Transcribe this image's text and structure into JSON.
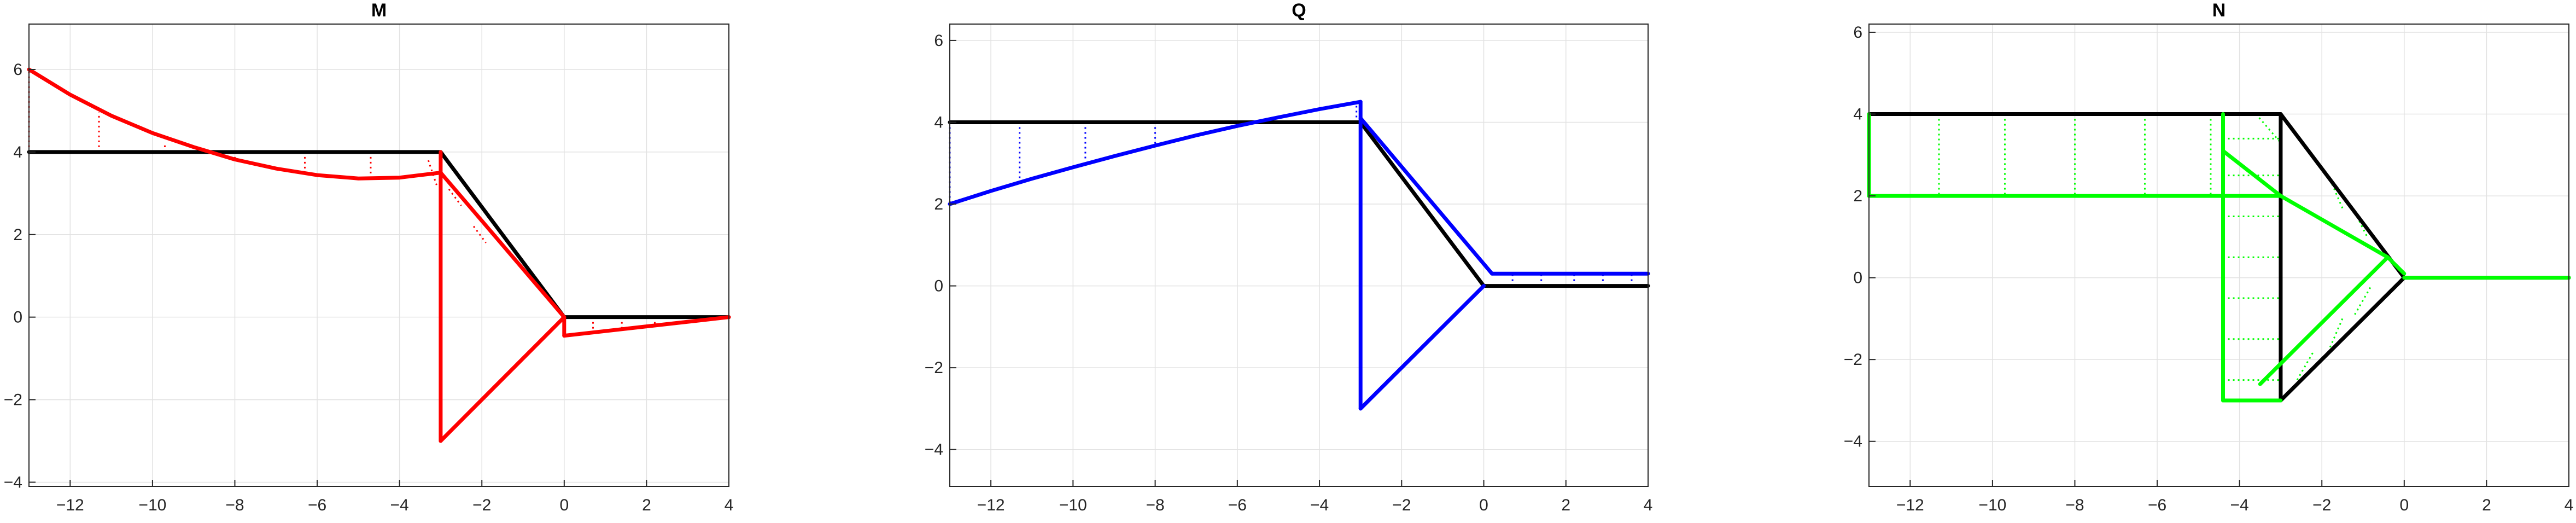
{
  "chart_data": [
    {
      "type": "line",
      "title": "M",
      "xlim": [
        -13,
        4
      ],
      "ylim": [
        -4.1,
        7.1
      ],
      "xticks": [
        -12,
        -10,
        -8,
        -6,
        -4,
        -2,
        0,
        2,
        4
      ],
      "yticks": [
        -4,
        -2,
        0,
        2,
        4,
        6
      ],
      "grid": true,
      "colors": {
        "structure": "#000000",
        "diagram": "#ff0000",
        "hatch": "#ff0000"
      },
      "structure": [
        [
          [
            -13,
            4
          ],
          [
            -3,
            4
          ]
        ],
        [
          [
            -3,
            4
          ],
          [
            0,
            0
          ]
        ],
        [
          [
            0,
            0
          ],
          [
            4,
            0
          ]
        ]
      ],
      "diagram": [
        {
          "points": [
            [
              -13,
              6
            ],
            [
              -12,
              5.39
            ],
            [
              -11,
              4.88
            ],
            [
              -10,
              4.46
            ],
            [
              -9,
              4.12
            ],
            [
              -8,
              3.82
            ],
            [
              -7,
              3.6
            ],
            [
              -6,
              3.44
            ],
            [
              -5,
              3.36
            ],
            [
              -4,
              3.38
            ],
            [
              -3,
              3.5
            ]
          ]
        },
        {
          "points": [
            [
              -3,
              3.5
            ],
            [
              0,
              0
            ]
          ]
        },
        {
          "points": [
            [
              -3,
              4
            ],
            [
              -3,
              -3
            ]
          ]
        },
        {
          "points": [
            [
              -3,
              -3
            ],
            [
              0,
              0
            ]
          ]
        },
        {
          "points": [
            [
              0,
              -0.45
            ],
            [
              4,
              0
            ]
          ]
        },
        {
          "points": [
            [
              0,
              0
            ],
            [
              0,
              -0.45
            ]
          ]
        }
      ],
      "hatch": [
        [
          [
            -13,
            4
          ],
          [
            -13,
            6
          ]
        ],
        [
          [
            -11.3,
            4
          ],
          [
            -11.3,
            4.96
          ]
        ],
        [
          [
            -9.7,
            4
          ],
          [
            -9.7,
            4.23
          ]
        ],
        [
          [
            -8,
            4
          ],
          [
            -8,
            3.82
          ]
        ],
        [
          [
            -6.3,
            4
          ],
          [
            -6.3,
            3.47
          ]
        ],
        [
          [
            -4.7,
            4
          ],
          [
            -4.7,
            3.36
          ]
        ],
        [
          [
            -3.3,
            3.8
          ],
          [
            -3.1,
            3.2
          ]
        ],
        [
          [
            -2.8,
            3.1
          ],
          [
            -2.5,
            2.7
          ]
        ],
        [
          [
            -2.2,
            2.2
          ],
          [
            -1.9,
            1.8
          ]
        ],
        [
          [
            0.7,
            0
          ],
          [
            0.7,
            -0.37
          ]
        ],
        [
          [
            1.4,
            0
          ],
          [
            1.4,
            -0.29
          ]
        ],
        [
          [
            2.2,
            0
          ],
          [
            2.2,
            -0.2
          ]
        ]
      ]
    },
    {
      "type": "line",
      "title": "Q",
      "xlim": [
        -13,
        4
      ],
      "ylim": [
        -4.9,
        6.4
      ],
      "xticks": [
        -12,
        -10,
        -8,
        -6,
        -4,
        -2,
        0,
        2,
        4
      ],
      "yticks": [
        -4,
        -2,
        0,
        2,
        4,
        6
      ],
      "grid": true,
      "colors": {
        "structure": "#000000",
        "diagram": "#0000ff",
        "hatch": "#0000ff"
      },
      "structure": [
        [
          [
            -13,
            4
          ],
          [
            -3,
            4
          ]
        ],
        [
          [
            -3,
            4
          ],
          [
            0,
            0
          ]
        ],
        [
          [
            0,
            0
          ],
          [
            4,
            0
          ]
        ]
      ],
      "diagram": [
        {
          "points": [
            [
              -13,
              2
            ],
            [
              -12,
              2.32
            ],
            [
              -11,
              2.62
            ],
            [
              -10,
              2.9
            ],
            [
              -9,
              3.17
            ],
            [
              -8,
              3.43
            ],
            [
              -7,
              3.68
            ],
            [
              -6,
              3.91
            ],
            [
              -5,
              4.12
            ],
            [
              -4,
              4.32
            ],
            [
              -3,
              4.5
            ]
          ]
        },
        {
          "points": [
            [
              -3,
              4.5
            ],
            [
              -3,
              4.1
            ]
          ]
        },
        {
          "points": [
            [
              -3,
              4.1
            ],
            [
              0.2,
              0.3
            ]
          ]
        },
        {
          "points": [
            [
              0.2,
              0.3
            ],
            [
              4,
              0.3
            ]
          ]
        },
        {
          "points": [
            [
              -3,
              4.1
            ],
            [
              -3,
              -3
            ]
          ]
        },
        {
          "points": [
            [
              -3,
              -3
            ],
            [
              0,
              0
            ]
          ]
        }
      ],
      "hatch": [
        [
          [
            -13,
            4
          ],
          [
            -13,
            2
          ]
        ],
        [
          [
            -11.3,
            4
          ],
          [
            -11.3,
            2.6
          ]
        ],
        [
          [
            -9.7,
            4
          ],
          [
            -9.7,
            3.05
          ]
        ],
        [
          [
            -8,
            4
          ],
          [
            -8,
            3.43
          ]
        ],
        [
          [
            -3.1,
            4
          ],
          [
            -3.1,
            4.45
          ]
        ],
        [
          [
            0.7,
            0
          ],
          [
            0.7,
            0.3
          ]
        ],
        [
          [
            1.4,
            0
          ],
          [
            1.4,
            0.3
          ]
        ],
        [
          [
            2.2,
            0
          ],
          [
            2.2,
            0.3
          ]
        ],
        [
          [
            2.9,
            0
          ],
          [
            2.9,
            0.3
          ]
        ],
        [
          [
            3.6,
            0
          ],
          [
            3.6,
            0.3
          ]
        ]
      ]
    },
    {
      "type": "line",
      "title": "N",
      "xlim": [
        -13,
        4
      ],
      "ylim": [
        -5.1,
        6.2
      ],
      "xticks": [
        -12,
        -10,
        -8,
        -6,
        -4,
        -2,
        0,
        2,
        4
      ],
      "yticks": [
        -4,
        -2,
        0,
        2,
        4,
        6
      ],
      "grid": true,
      "colors": {
        "structure": "#000000",
        "diagram": "#00ff00",
        "hatch": "#00ff00"
      },
      "structure": [
        [
          [
            -13,
            4
          ],
          [
            -3,
            4
          ]
        ],
        [
          [
            -3,
            4
          ],
          [
            0,
            0
          ]
        ],
        [
          [
            0,
            0
          ],
          [
            4,
            0
          ]
        ],
        [
          [
            -3,
            4
          ],
          [
            -3,
            -3
          ]
        ],
        [
          [
            -3,
            -3
          ],
          [
            0,
            0
          ]
        ]
      ],
      "diagram": [
        {
          "points": [
            [
              -13,
              2
            ],
            [
              -3,
              2
            ]
          ]
        },
        {
          "points": [
            [
              -13,
              4
            ],
            [
              -13,
              2
            ]
          ]
        },
        {
          "points": [
            [
              -4.4,
              4
            ],
            [
              -4.4,
              -3
            ]
          ]
        },
        {
          "points": [
            [
              -4.4,
              -3
            ],
            [
              -3,
              -3
            ]
          ]
        },
        {
          "points": [
            [
              -4.4,
              3.1
            ],
            [
              -3,
              2
            ]
          ]
        },
        {
          "points": [
            [
              -3,
              2
            ],
            [
              -0.4,
              0.5
            ]
          ]
        },
        {
          "points": [
            [
              -0.4,
              0.5
            ],
            [
              -3.5,
              -2.6
            ]
          ]
        },
        {
          "points": [
            [
              -0.4,
              0.5
            ],
            [
              0,
              0.1
            ]
          ]
        },
        {
          "points": [
            [
              0,
              0
            ],
            [
              4,
              0
            ]
          ]
        }
      ],
      "hatch": [
        [
          [
            -11.3,
            4
          ],
          [
            -11.3,
            2
          ]
        ],
        [
          [
            -9.7,
            4
          ],
          [
            -9.7,
            2
          ]
        ],
        [
          [
            -8,
            4
          ],
          [
            -8,
            2
          ]
        ],
        [
          [
            -6.3,
            4
          ],
          [
            -6.3,
            2
          ]
        ],
        [
          [
            -4.7,
            4
          ],
          [
            -4.7,
            2
          ]
        ],
        [
          [
            -4.4,
            3.4
          ],
          [
            -3,
            3.4
          ]
        ],
        [
          [
            -4.4,
            2.5
          ],
          [
            -3,
            2.5
          ]
        ],
        [
          [
            -4.4,
            1.5
          ],
          [
            -3,
            1.5
          ]
        ],
        [
          [
            -4.4,
            0.5
          ],
          [
            -3,
            0.5
          ]
        ],
        [
          [
            -4.4,
            -0.5
          ],
          [
            -3,
            -0.5
          ]
        ],
        [
          [
            -4.4,
            -1.5
          ],
          [
            -3,
            -1.5
          ]
        ],
        [
          [
            -4.4,
            -2.5
          ],
          [
            -3,
            -2.5
          ]
        ],
        [
          [
            -3.6,
            4
          ],
          [
            -3,
            3.3
          ]
        ],
        [
          [
            -2.5,
            3.3
          ],
          [
            -2.1,
            2.8
          ]
        ],
        [
          [
            -1.8,
            2.4
          ],
          [
            -1.5,
            1.7
          ]
        ],
        [
          [
            -1.2,
            1.6
          ],
          [
            -0.9,
            1.0
          ]
        ],
        [
          [
            -2.6,
            -2.5
          ],
          [
            -2.2,
            -1.8
          ]
        ],
        [
          [
            -1.8,
            -1.7
          ],
          [
            -1.5,
            -1.0
          ]
        ],
        [
          [
            -1.2,
            -0.9
          ],
          [
            -0.8,
            -0.2
          ]
        ]
      ]
    }
  ]
}
